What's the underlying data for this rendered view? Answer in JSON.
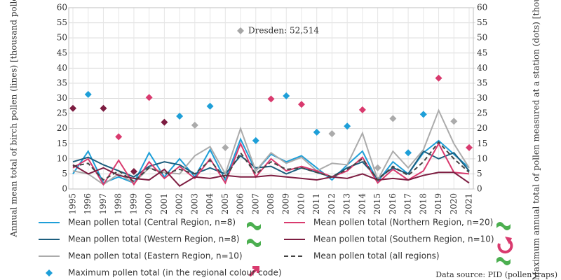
{
  "chart_data": {
    "type": "line",
    "y_label": "Annual mean total of birch pollen (lines) [thousand pollen/m³ air]",
    "y2_label": "Maximum annual total of pollen measured at a station (dots) [thousand pollen/m³ air]",
    "annotation": "Dresden: 52,514",
    "annotation_color": "#a6a6a6",
    "source": "Data source: PID (pollen traps)",
    "categories": [
      "1995",
      "1996",
      "1997",
      "1998",
      "1999",
      "2000",
      "2001",
      "2002",
      "2003",
      "2004",
      "2005",
      "2006",
      "2007",
      "2008",
      "2009",
      "2010",
      "2011",
      "2012",
      "2013",
      "2014",
      "2015",
      "2016",
      "2017",
      "2018",
      "2019",
      "2020",
      "2021"
    ],
    "ylim": [
      0,
      60
    ],
    "yticks": [
      0,
      5,
      10,
      15,
      20,
      25,
      30,
      35,
      40,
      45,
      50,
      55,
      60
    ],
    "y2lim": [
      0,
      60
    ],
    "y2ticks": [
      0,
      5,
      10,
      15,
      20,
      25,
      30,
      35,
      40,
      45,
      50,
      55,
      60
    ],
    "grid": true,
    "series": [
      {
        "name": "Mean pollen total (Central Region, n=8)",
        "color": "#1e9fd8",
        "values": [
          5,
          12.5,
          2,
          4,
          2,
          12,
          4,
          10,
          4,
          13,
          3,
          16.5,
          6,
          11.5,
          9,
          11,
          7,
          3,
          8,
          12.5,
          2.5,
          9,
          5,
          12,
          16,
          11.5,
          7
        ]
      },
      {
        "name": "Mean pollen total (Western Region, n=8)",
        "color": "#1c5e7e",
        "values": [
          9,
          10.5,
          8,
          6,
          4,
          7.5,
          9,
          8,
          5,
          7,
          5,
          11,
          7,
          7.5,
          5,
          7,
          5.5,
          4,
          7,
          9,
          3.5,
          7,
          5,
          12.5,
          10,
          12,
          6
        ]
      },
      {
        "name": "Mean pollen total (Eastern Region, n=10)",
        "color": "#ababab",
        "values": [
          6,
          5,
          1.5,
          5,
          2,
          7,
          5.5,
          5,
          11,
          14,
          5,
          20,
          6,
          12,
          8.5,
          10.5,
          6,
          8.5,
          8,
          18.5,
          3,
          12.5,
          7,
          13,
          26,
          15,
          7
        ]
      },
      {
        "name": "Mean pollen total (Northern Region, n=20)",
        "color": "#d93a6e",
        "values": [
          7,
          10,
          1.5,
          9.5,
          1.5,
          9,
          3.5,
          7.5,
          3.5,
          10,
          2,
          15,
          4,
          10,
          6,
          7.5,
          6,
          4,
          6,
          10.5,
          2,
          6.5,
          3,
          6,
          15,
          5.5,
          5
        ]
      },
      {
        "name": "Mean pollen total (Southern Region, n=10)",
        "color": "#7d1d41",
        "values": [
          8,
          5,
          7,
          4.5,
          3.5,
          3,
          6.5,
          1,
          4,
          3.5,
          4.5,
          4,
          4,
          4.5,
          4,
          3.5,
          3,
          4,
          3.5,
          5,
          3,
          3.5,
          3,
          4.5,
          5.5,
          5.5,
          2
        ]
      },
      {
        "name": "Mean pollen total (all regions)",
        "color": "#444444",
        "dashed": true,
        "values": [
          7.5,
          8.5,
          3,
          6,
          2.5,
          7,
          5,
          6.5,
          5,
          9.5,
          3.5,
          12,
          5,
          9,
          6.5,
          7,
          5.5,
          4,
          6.5,
          10,
          3,
          7.5,
          4.5,
          9,
          15.5,
          10,
          5.5
        ]
      },
      {
        "name": "Maximum pollen total (in the regional colour code)",
        "type": "scatter",
        "axis": "y2",
        "color": "#1e9fd8",
        "values": [
          26.7,
          31.3,
          26.7,
          17.3,
          5.8,
          30.3,
          22.1,
          24.1,
          21.1,
          27.4,
          13.7,
          null,
          16,
          29.8,
          30.8,
          28,
          18.8,
          18.3,
          20.8,
          26.2,
          7,
          23.3,
          12,
          24.7,
          36.7,
          22.4,
          13.7
        ],
        "colors": [
          "#7d1d41",
          "#1e9fd8",
          "#7d1d41",
          "#d93a6e",
          "#7d1d41",
          "#d93a6e",
          "#7d1d41",
          "#1e9fd8",
          "#ababab",
          "#1e9fd8",
          "#ababab",
          "#ababab",
          "#1e9fd8",
          "#d93a6e",
          "#1e9fd8",
          "#d93a6e",
          "#1e9fd8",
          "#ababab",
          "#1e9fd8",
          "#d93a6e",
          "#ababab",
          "#ababab",
          "#1e9fd8",
          "#1e9fd8",
          "#d93a6e",
          "#ababab",
          "#d93a6e"
        ]
      }
    ]
  }
}
